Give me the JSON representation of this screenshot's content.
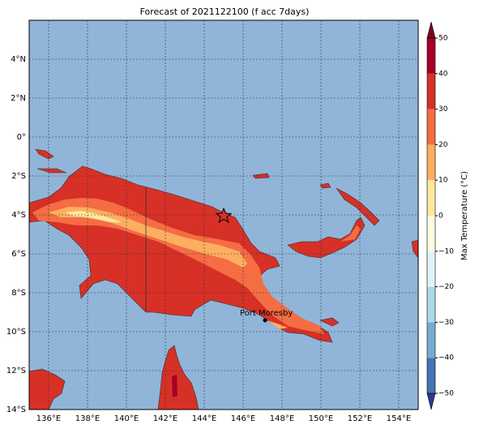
{
  "chart_data": {
    "type": "contour-map",
    "title": "Forecast of 2021122100 (f acc 7days)",
    "xlim": [
      135,
      155
    ],
    "ylim": [
      -14,
      6
    ],
    "xticks": [
      {
        "value": 136,
        "label": "136°E"
      },
      {
        "value": 138,
        "label": "138°E"
      },
      {
        "value": 140,
        "label": "140°E"
      },
      {
        "value": 142,
        "label": "142°E"
      },
      {
        "value": 144,
        "label": "144°E"
      },
      {
        "value": 146,
        "label": "146°E"
      },
      {
        "value": 148,
        "label": "148°E"
      },
      {
        "value": 150,
        "label": "150°E"
      },
      {
        "value": 152,
        "label": "152°E"
      },
      {
        "value": 154,
        "label": "154°E"
      }
    ],
    "yticks": [
      {
        "value": -14,
        "label": "14°S"
      },
      {
        "value": -12,
        "label": "12°S"
      },
      {
        "value": -10,
        "label": "10°S"
      },
      {
        "value": -8,
        "label": "8°S"
      },
      {
        "value": -6,
        "label": "6°S"
      },
      {
        "value": -4,
        "label": "4°S"
      },
      {
        "value": -2,
        "label": "2°S"
      },
      {
        "value": 0,
        "label": "0°"
      },
      {
        "value": 2,
        "label": "2°N"
      },
      {
        "value": 4,
        "label": "4°N"
      }
    ],
    "grid": true,
    "place_label": "Port Moresby",
    "colorbar": {
      "label": "Max Temperature (°C)",
      "lim": [
        -50,
        50
      ],
      "ticks": [
        {
          "value": -50,
          "label": "−50"
        },
        {
          "value": -40,
          "label": "−40"
        },
        {
          "value": -30,
          "label": "−30"
        },
        {
          "value": -20,
          "label": "−20"
        },
        {
          "value": -10,
          "label": "−10"
        },
        0,
        10,
        20,
        30,
        40,
        50
      ],
      "colors": [
        "#313695",
        "#4575b4",
        "#74add1",
        "#abd9e9",
        "#e0f3f8",
        "#fffbe0",
        "#fee8a0",
        "#fdae61",
        "#f46d43",
        "#d73027",
        "#a50026",
        "#800026"
      ]
    }
  }
}
